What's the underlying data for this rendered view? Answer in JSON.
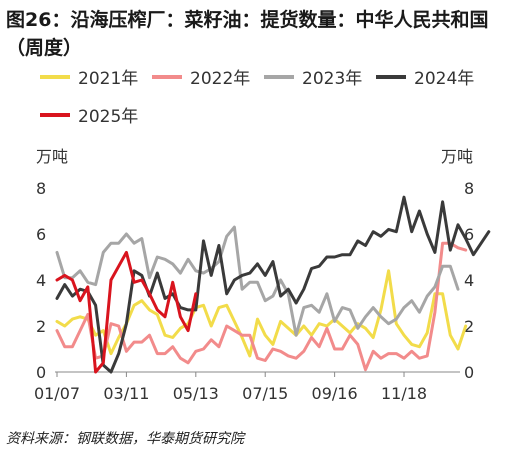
{
  "title": "图26：沿海压榨厂：菜籽油：提货数量：中华人民共和国（周度）",
  "source": "资料来源：钢联数据，华泰期货研究院",
  "colors": {
    "2021": "#f2dc4a",
    "2022": "#f28b8b",
    "2023": "#a6a6a6",
    "2024": "#3a3a3a",
    "2025": "#d9141e"
  },
  "chart_data": {
    "type": "line",
    "ylabel_left": "万吨",
    "ylabel_right": "万吨",
    "ylim": [
      0,
      8
    ],
    "yticks": [
      0,
      2,
      4,
      6,
      8
    ],
    "x_ticks": [
      "01/07",
      "03/11",
      "05/13",
      "07/15",
      "09/16",
      "11/18"
    ],
    "x_tick_weeks": [
      1,
      10,
      19,
      28,
      37,
      46
    ],
    "x_weeks_total": 53,
    "grid": false,
    "legend_position": "top",
    "series": [
      {
        "name": "2021年",
        "values": [
          2.2,
          2.0,
          2.3,
          2.4,
          2.3,
          1.6,
          1.8,
          0.8,
          1.5,
          2.1,
          2.9,
          3.1,
          2.7,
          2.5,
          1.6,
          1.5,
          1.9,
          2.1,
          2.8,
          2.9,
          2.0,
          2.8,
          2.9,
          2.2,
          1.5,
          0.7,
          2.3,
          1.6,
          1.2,
          2.2,
          1.9,
          1.6,
          2.0,
          1.6,
          2.1,
          2.0,
          2.3,
          2.0,
          1.7,
          2.1,
          1.9,
          1.5,
          2.7,
          4.4,
          2.1,
          1.6,
          1.2,
          1.1,
          1.7,
          3.4,
          3.4,
          1.6,
          1.0,
          2.0
        ]
      },
      {
        "name": "2022年",
        "values": [
          1.8,
          1.1,
          1.1,
          1.8,
          2.5,
          0.6,
          0.7,
          2.1,
          2.0,
          0.9,
          1.3,
          1.3,
          1.6,
          0.8,
          0.8,
          1.1,
          0.6,
          0.4,
          0.9,
          1.0,
          1.4,
          1.1,
          2.0,
          1.8,
          1.6,
          1.6,
          0.6,
          0.5,
          1.0,
          0.9,
          0.7,
          0.6,
          0.9,
          1.5,
          1.1,
          1.9,
          1.0,
          1.0,
          1.6,
          1.2,
          0.1,
          0.9,
          0.6,
          0.8,
          0.8,
          0.6,
          0.9,
          0.6,
          0.7,
          2.6,
          5.6,
          5.6,
          5.4,
          5.3
        ]
      },
      {
        "name": "2023年",
        "values": [
          5.2,
          4.1,
          4.1,
          4.4,
          3.9,
          3.8,
          5.2,
          5.6,
          5.6,
          6.0,
          5.6,
          5.8,
          4.1,
          5.0,
          4.9,
          4.7,
          4.3,
          4.9,
          4.4,
          4.3,
          4.5,
          4.8,
          5.9,
          6.3,
          3.6,
          3.9,
          3.9,
          3.1,
          3.3,
          4.0,
          3.4,
          1.6,
          2.8,
          2.9,
          2.6,
          3.4,
          2.2,
          2.8,
          2.7,
          1.9,
          2.4,
          2.8,
          2.4,
          2.1,
          2.3,
          2.8,
          3.1,
          2.6,
          3.3,
          3.7,
          4.6,
          4.6,
          3.6
        ]
      },
      {
        "name": "2024年",
        "values": [
          3.2,
          3.8,
          3.3,
          3.6,
          3.5,
          2.9,
          0.3,
          0.0,
          0.8,
          2.1,
          4.4,
          4.2,
          3.3,
          4.3,
          3.2,
          3.4,
          2.8,
          2.7,
          2.7,
          5.7,
          4.2,
          5.5,
          3.4,
          4.0,
          4.2,
          4.3,
          4.7,
          4.2,
          4.8,
          3.3,
          3.6,
          3.0,
          3.6,
          4.5,
          4.6,
          5.0,
          5.0,
          5.1,
          5.1,
          5.7,
          5.5,
          6.1,
          5.9,
          6.2,
          6.1,
          7.6,
          6.1,
          7.0,
          6.0,
          5.2,
          7.4,
          5.3,
          6.4,
          5.8,
          5.1,
          5.6,
          6.1
        ]
      },
      {
        "name": "2025年",
        "values": [
          4.0,
          4.2,
          4.0,
          3.1,
          3.7,
          0.0,
          0.4,
          4.0,
          4.6,
          5.2,
          3.9,
          4.0,
          3.4,
          2.7,
          2.4,
          3.9,
          2.4,
          1.8,
          3.4
        ]
      }
    ]
  }
}
